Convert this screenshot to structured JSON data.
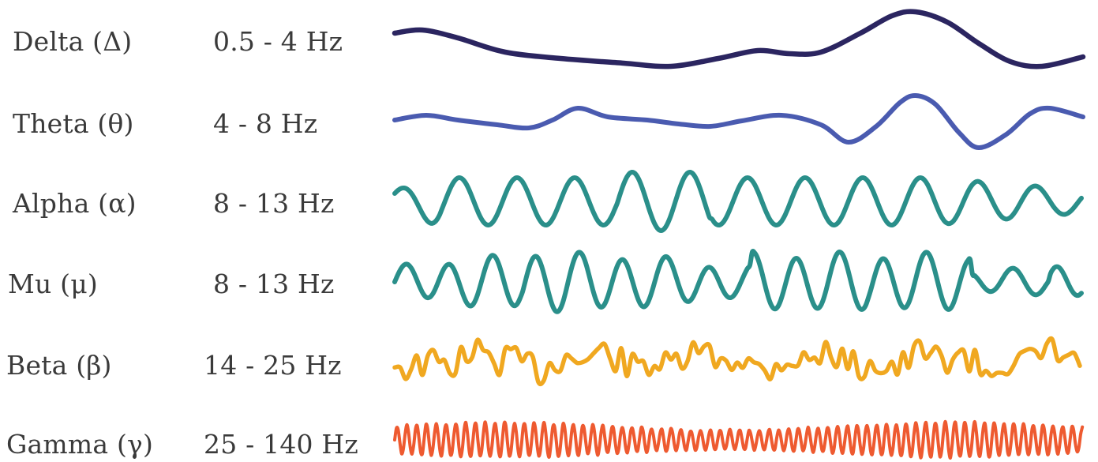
{
  "bands": [
    {
      "name": "Delta (Δ)",
      "range": "0.5 - 4 Hz",
      "color": "#2b2560"
    },
    {
      "name": "Theta (θ)",
      "range": "4 - 8 Hz",
      "color": "#4a5bb0"
    },
    {
      "name": "Alpha (α)",
      "range": "8 - 13 Hz",
      "color": "#2a8f8a"
    },
    {
      "name": "Mu (μ)",
      "range": "8 - 13 Hz",
      "color": "#2a8f8a"
    },
    {
      "name": "Beta (β)",
      "range": "14 - 25 Hz",
      "color": "#f0a820"
    },
    {
      "name": "Gamma (γ)",
      "range": "25 - 140 Hz",
      "color": "#ee5a30"
    }
  ]
}
